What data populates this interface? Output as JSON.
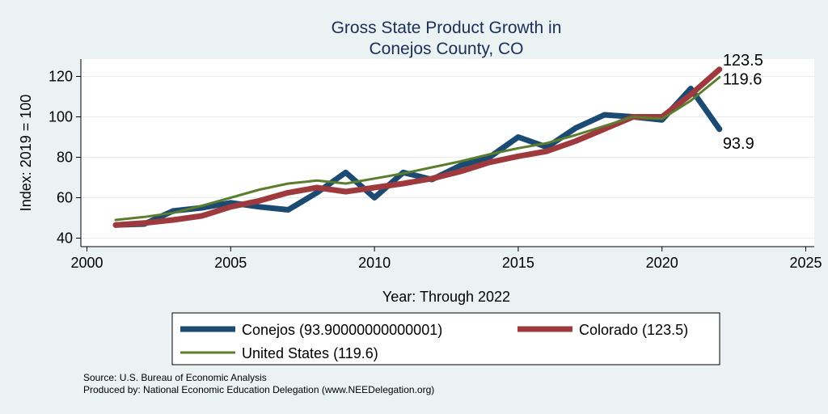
{
  "chart_data": {
    "type": "line",
    "title": [
      "Gross State Product Growth in",
      "Conejos County, CO"
    ],
    "xlabel": "Year: Through 2022",
    "ylabel": "Index: 2019 = 100",
    "xlim": [
      2000,
      2025
    ],
    "ylim": [
      40,
      128
    ],
    "xticks": [
      2000,
      2005,
      2010,
      2015,
      2020,
      2025
    ],
    "yticks": [
      40,
      60,
      80,
      100,
      120
    ],
    "grid": "horizontal",
    "legend_position": "bottom",
    "series": [
      {
        "name": "Conejos  (93.90000000000001)",
        "color": "#1b4a72",
        "width": 7,
        "x": [
          2001,
          2002,
          2003,
          2004,
          2005,
          2006,
          2007,
          2008,
          2009,
          2010,
          2011,
          2012,
          2013,
          2014,
          2015,
          2016,
          2017,
          2018,
          2019,
          2020,
          2021,
          2022
        ],
        "y": [
          46.5,
          47,
          53.5,
          55,
          57.5,
          55.5,
          54,
          62.5,
          72.5,
          60,
          72.5,
          69,
          76,
          80,
          90,
          85,
          94.5,
          101,
          100,
          98.5,
          114,
          93.9
        ],
        "end_label": "93.9"
      },
      {
        "name": "Colorado (123.5)",
        "color": "#9e3a3e",
        "width": 7,
        "x": [
          2001,
          2002,
          2003,
          2004,
          2005,
          2006,
          2007,
          2008,
          2009,
          2010,
          2011,
          2012,
          2013,
          2014,
          2015,
          2016,
          2017,
          2018,
          2019,
          2020,
          2021,
          2022
        ],
        "y": [
          46.5,
          47.5,
          49,
          51,
          55.5,
          58.5,
          62.5,
          65,
          63,
          65,
          67,
          69.5,
          73,
          77.5,
          80.5,
          83,
          88,
          94,
          100,
          100,
          111,
          123.5
        ],
        "end_label": "123.5"
      },
      {
        "name": "United States (119.6)",
        "color": "#5a7d2e",
        "width": 3,
        "x": [
          2001,
          2002,
          2003,
          2004,
          2005,
          2006,
          2007,
          2008,
          2009,
          2010,
          2011,
          2012,
          2013,
          2014,
          2015,
          2016,
          2017,
          2018,
          2019,
          2020,
          2021,
          2022
        ],
        "y": [
          49,
          50.5,
          52.5,
          56,
          60,
          64,
          67,
          68.5,
          67,
          69.5,
          72,
          75,
          78,
          81.5,
          84.5,
          87,
          91,
          95.5,
          100,
          99,
          108,
          119.6
        ],
        "end_label": "119.6"
      }
    ],
    "source_lines": [
      "Source: U.S. Bureau of Economic Analysis",
      "Produced by: National Economic Education Delegation (www.NEEDelegation.org)"
    ]
  }
}
